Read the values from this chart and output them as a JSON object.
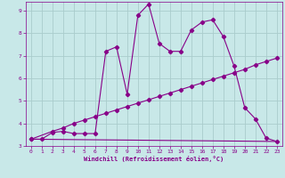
{
  "xlabel": "Windchill (Refroidissement éolien,°C)",
  "bg_color": "#c8e8e8",
  "line_color": "#880088",
  "grid_color": "#aacccc",
  "xlim": [
    -0.5,
    23.5
  ],
  "ylim": [
    3.0,
    9.4
  ],
  "xticks": [
    0,
    1,
    2,
    3,
    4,
    5,
    6,
    7,
    8,
    9,
    10,
    11,
    12,
    13,
    14,
    15,
    16,
    17,
    18,
    19,
    20,
    21,
    22,
    23
  ],
  "yticks": [
    3,
    4,
    5,
    6,
    7,
    8,
    9
  ],
  "line1_x": [
    0,
    1,
    2,
    3,
    4,
    5,
    6,
    7,
    8,
    9,
    10,
    11,
    12,
    13,
    14,
    15,
    16,
    17,
    18,
    19,
    20,
    21,
    22,
    23
  ],
  "line1_y": [
    3.3,
    3.3,
    3.6,
    3.65,
    3.55,
    3.55,
    3.55,
    7.2,
    7.4,
    5.3,
    8.8,
    9.3,
    7.55,
    7.2,
    7.2,
    8.15,
    8.5,
    8.6,
    7.85,
    6.55,
    4.7,
    4.2,
    3.35,
    3.2
  ],
  "line2_x": [
    0,
    2,
    3,
    4,
    5,
    6,
    7,
    8,
    9,
    10,
    11,
    12,
    13,
    14,
    15,
    16,
    17,
    18,
    19,
    20,
    21,
    22,
    23
  ],
  "line2_y": [
    3.3,
    3.65,
    3.8,
    4.0,
    4.15,
    4.3,
    4.45,
    4.6,
    4.75,
    4.9,
    5.05,
    5.2,
    5.35,
    5.5,
    5.65,
    5.8,
    5.95,
    6.1,
    6.25,
    6.4,
    6.6,
    6.75,
    6.9
  ],
  "line3_x": [
    0,
    23
  ],
  "line3_y": [
    3.3,
    3.2
  ]
}
